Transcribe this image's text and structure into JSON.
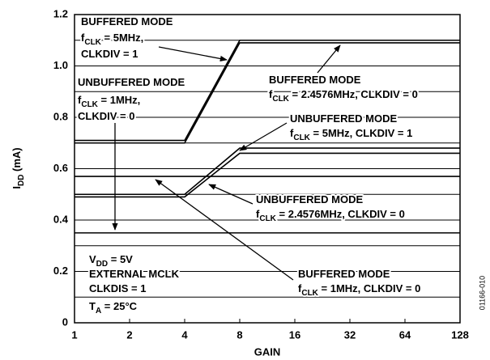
{
  "chart_data": {
    "type": "line",
    "xlabel": "GAIN",
    "ylabel": [
      "I",
      "DD",
      " (mA)"
    ],
    "categories": [
      "1",
      "2",
      "4",
      "8",
      "16",
      "32",
      "64",
      "128"
    ],
    "ylim": [
      0,
      1.2
    ],
    "yticks": [
      0,
      0.2,
      0.4,
      0.6,
      0.8,
      {
        "value": 1,
        "label": "1.0"
      },
      1.2
    ],
    "minor_yticks": [
      0.1,
      0.3,
      0.5,
      0.7,
      0.9,
      1.1
    ],
    "grid": true,
    "series": [
      {
        "color": "#000000",
        "values": [
          0.71,
          0.71,
          0.71,
          1.1,
          1.1,
          1.1,
          1.1,
          1.1
        ]
      },
      {
        "color": "#000000",
        "values": [
          0.7,
          0.7,
          0.7,
          1.09,
          1.09,
          1.09,
          1.09,
          1.09
        ]
      },
      {
        "color": "#000000",
        "values": [
          0.5,
          0.5,
          0.5,
          0.68,
          0.68,
          0.68,
          0.68,
          0.68
        ]
      },
      {
        "color": "#000000",
        "values": [
          0.49,
          0.49,
          0.49,
          0.66,
          0.66,
          0.66,
          0.66,
          0.66
        ]
      },
      {
        "color": "#000000",
        "values": [
          0.57,
          0.57,
          0.57,
          0.57,
          0.57,
          0.57,
          0.57,
          0.57
        ]
      },
      {
        "color": "#000000",
        "values": [
          0.35,
          0.35,
          0.35,
          0.35,
          0.35,
          0.35,
          0.35,
          0.35
        ]
      }
    ],
    "annotations": [
      {
        "lines": [
          [
            "BUFFERED MODE"
          ],
          [
            "f",
            "CLK",
            " = 5MHz,"
          ],
          [
            "CLKDIV = 1"
          ]
        ]
      },
      {
        "lines": [
          [
            "UNBUFFERED MODE"
          ],
          [
            "f",
            "CLK",
            " = 1MHz,"
          ],
          [
            "CLKDIV = 0"
          ]
        ]
      },
      {
        "lines": [
          [
            "BUFFERED MODE"
          ],
          [
            "f",
            "CLK",
            " = 2.4576MHz, CLKDIV = 0"
          ]
        ]
      },
      {
        "lines": [
          [
            "UNBUFFERED MODE"
          ],
          [
            "f",
            "CLK",
            " = 5MHz, CLKDIV = 1"
          ]
        ]
      },
      {
        "lines": [
          [
            "UNBUFFERED MODE"
          ],
          [
            "f",
            "CLK",
            " = 2.4576MHz, CLKDIV = 0"
          ]
        ]
      },
      {
        "lines": [
          [
            "V",
            "DD",
            " = 5V"
          ],
          [
            "EXTERNAL MCLK"
          ],
          [
            "CLKDIS = 1"
          ],
          [
            "T",
            "A",
            " = 25°C"
          ]
        ]
      },
      {
        "lines": [
          [
            "BUFFERED MODE"
          ],
          [
            "f",
            "CLK",
            " = 1MHz, CLKDIV = 0"
          ]
        ]
      }
    ],
    "figure_id": "01166-010"
  }
}
